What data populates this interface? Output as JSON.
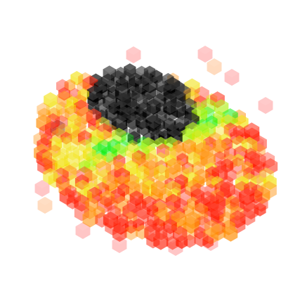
{
  "image": {
    "background": "#ffffff",
    "subject": "voxel-cloud",
    "palette": {
      "black": "#000000",
      "dark_gray": "#222222",
      "green": "#00ee00",
      "lime": "#a8f000",
      "yellow": "#f2e000",
      "orange": "#ff8c00",
      "red": "#ff1a00",
      "pink": "#ff8080",
      "peach": "#ffb070"
    }
  }
}
